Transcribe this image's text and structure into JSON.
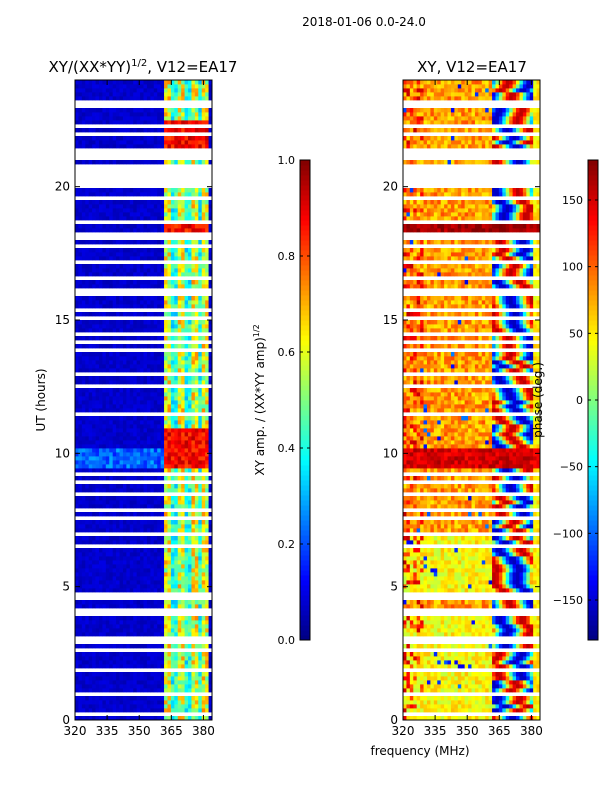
{
  "chart_data": [
    {
      "type": "heatmap",
      "title": "XY/(XX*YY)",
      "title_exponent": "1/2",
      "title_suffix": ", V12=EA17",
      "xlabel": "",
      "ylabel": "UT (hours)",
      "xlim": [
        320,
        384
      ],
      "ylim": [
        0,
        24
      ],
      "xticks": [
        "320",
        "335",
        "350",
        "365",
        "380"
      ],
      "yticks": [
        "0",
        "5",
        "10",
        "15",
        "20"
      ],
      "colorbar": {
        "label": "XY amp. / (XX*YY amp)",
        "label_exponent": "1/2",
        "range": [
          0.0,
          1.0
        ],
        "ticks": [
          "0.0",
          "0.2",
          "0.4",
          "0.6",
          "0.8",
          "1.0"
        ],
        "colormap": "jet"
      },
      "description_values": {
        "background_level": 0.05,
        "high_band_freq_range": [
          362,
          382
        ],
        "high_band_level": [
          0.4,
          0.95
        ]
      }
    },
    {
      "type": "heatmap",
      "title": "XY, V12=EA17",
      "xlabel": "frequency (MHz)",
      "ylabel": "",
      "xlim": [
        320,
        384
      ],
      "ylim": [
        0,
        24
      ],
      "xticks": [
        "320",
        "335",
        "350",
        "365",
        "380"
      ],
      "yticks": [
        "0",
        "5",
        "10",
        "15",
        "20"
      ],
      "colorbar": {
        "label": "phase (deg.)",
        "range": [
          -180,
          180
        ],
        "ticks": [
          "−150",
          "−100",
          "−50",
          "0",
          "50",
          "100",
          "150"
        ],
        "colormap": "jet"
      }
    }
  ],
  "suptitle": "2018-01-06 0.0-24.0",
  "flagged_hours": [
    0.2,
    0.9,
    1.0,
    1.8,
    2.6,
    2.9,
    3.0,
    4.0,
    4.1,
    4.6,
    4.7,
    6.5,
    7.0,
    7.5,
    7.8,
    8.5,
    8.9,
    9.2,
    11.5,
    12.5,
    13.0,
    13.8,
    14.1,
    14.5,
    15.0,
    15.3,
    15.9,
    16.2,
    16.5,
    17.2,
    17.8,
    18.0,
    18.2,
    18.6,
    19.5,
    20.0,
    21.9,
    22.3,
    23.0,
    23.2
  ],
  "flagged_bands": [
    [
      20.2,
      20.7
    ],
    [
      21.1,
      21.4
    ]
  ]
}
